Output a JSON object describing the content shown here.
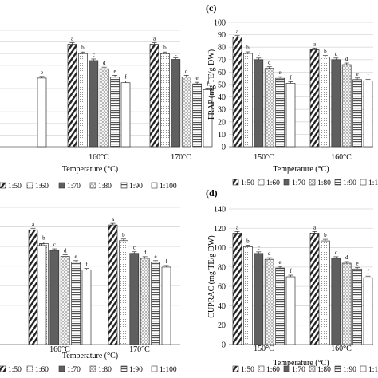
{
  "legend_names": [
    "1:50",
    "1:60",
    "1:70",
    "1:80",
    "1:90",
    "1:100"
  ],
  "chart_data": [
    {
      "panel_label": "",
      "type": "bar",
      "categories": [
        "",
        "160°C",
        "170°C"
      ],
      "series": [
        {
          "name": "1:50",
          "values": [
            null,
            88,
            88
          ]
        },
        {
          "name": "1:60",
          "values": [
            null,
            80,
            80
          ]
        },
        {
          "name": "1:70",
          "values": [
            null,
            74,
            75
          ]
        },
        {
          "name": "1:80",
          "values": [
            null,
            67,
            60
          ]
        },
        {
          "name": "1:90",
          "values": [
            null,
            60,
            54
          ]
        },
        {
          "name": "1:100",
          "values": [
            59,
            55,
            49
          ]
        }
      ],
      "letters": [
        "a",
        "b",
        "c",
        "d",
        "e",
        "f"
      ],
      "first_group_letters": [
        "",
        "",
        "",
        "",
        "",
        "e"
      ],
      "xlabel": "Temperature (°C)",
      "ylabel": "",
      "ylim": [
        0,
        100
      ],
      "show_y_ticks": false,
      "grid": true
    },
    {
      "panel_label": "(c)",
      "type": "bar",
      "categories": [
        "150°C",
        "160°C"
      ],
      "series": [
        {
          "name": "1:50",
          "values": [
            88,
            78
          ]
        },
        {
          "name": "1:60",
          "values": [
            75,
            72
          ]
        },
        {
          "name": "1:70",
          "values": [
            70,
            70
          ]
        },
        {
          "name": "1:80",
          "values": [
            63,
            66
          ]
        },
        {
          "name": "1:90",
          "values": [
            55,
            54
          ]
        },
        {
          "name": "1:100",
          "values": [
            51,
            53
          ]
        }
      ],
      "letters": [
        "a",
        "b",
        "c",
        "d",
        "e",
        "f"
      ],
      "xlabel": "Temperature (°C)",
      "ylabel": "FRAP (mg TE/g DW)",
      "ylim": [
        0,
        100
      ],
      "yticks": [
        0,
        10,
        20,
        30,
        40,
        50,
        60,
        70,
        80,
        90,
        100
      ],
      "show_y_ticks": true,
      "grid": true
    },
    {
      "panel_label": "",
      "type": "bar",
      "categories": [
        "",
        "160°C",
        "170°C"
      ],
      "series": [
        {
          "name": "1:50",
          "values": [
            null,
            117,
            122
          ]
        },
        {
          "name": "1:60",
          "values": [
            null,
            103,
            106
          ]
        },
        {
          "name": "1:70",
          "values": [
            null,
            96,
            93
          ]
        },
        {
          "name": "1:80",
          "values": [
            null,
            90,
            88
          ]
        },
        {
          "name": "1:90",
          "values": [
            null,
            84,
            84
          ]
        },
        {
          "name": "1:100",
          "values": [
            101,
            76,
            79
          ]
        }
      ],
      "letters": [
        "a",
        "b",
        "c",
        "d",
        "e",
        "f"
      ],
      "first_group_letters": [
        "",
        "",
        "",
        "",
        "",
        ""
      ],
      "xlabel": "Temperature (°C)",
      "ylabel": "",
      "ylim": [
        0,
        140
      ],
      "show_y_ticks": false,
      "grid": true
    },
    {
      "panel_label": "(d)",
      "type": "bar",
      "categories": [
        "150°C",
        "160°C"
      ],
      "series": [
        {
          "name": "1:50",
          "values": [
            115,
            115
          ]
        },
        {
          "name": "1:60",
          "values": [
            101,
            107
          ]
        },
        {
          "name": "1:70",
          "values": [
            94,
            89
          ]
        },
        {
          "name": "1:80",
          "values": [
            88,
            84
          ]
        },
        {
          "name": "1:90",
          "values": [
            79,
            78
          ]
        },
        {
          "name": "1:100",
          "values": [
            70,
            69
          ]
        }
      ],
      "letters": [
        "a",
        "b",
        "c",
        "d",
        "e",
        "f"
      ],
      "xlabel": "Temperature (°C)",
      "ylabel": "CUPRAC (mg TE/g DW)",
      "ylim": [
        0,
        140
      ],
      "yticks": [
        0,
        20,
        40,
        60,
        80,
        100,
        120,
        140
      ],
      "show_y_ticks": true,
      "grid": true
    }
  ]
}
